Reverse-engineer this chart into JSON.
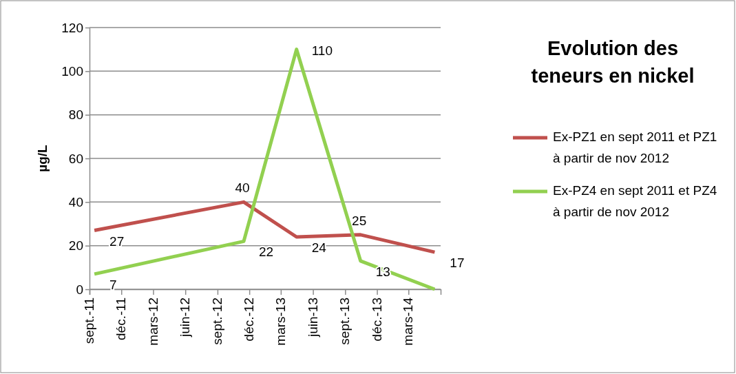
{
  "chart_data": {
    "type": "line",
    "title": "Evolution des teneurs en nickel",
    "ylabel": "µg/L",
    "x": [
      "2011-09-15",
      "2012-11-15",
      "2013-04-15",
      "2013-10-15",
      "2014-05-15"
    ],
    "series": [
      {
        "name": "Ex-PZ1 en sept 2011 et PZ1 à partir de nov 2012",
        "color": "#c0504d",
        "values": [
          27,
          40,
          24,
          25,
          17
        ],
        "value_labels": [
          "27",
          "40",
          "24",
          "25",
          "17"
        ]
      },
      {
        "name": "Ex-PZ4 en sept 2011 et PZ4 à partir de nov 2012",
        "color": "#92d050",
        "values": [
          7,
          22,
          110,
          13,
          0
        ],
        "value_labels": [
          "7",
          "22",
          "110",
          "13",
          null
        ]
      }
    ],
    "xlim": [
      "2011-09-01",
      "2014-06-01"
    ],
    "xticks": [
      {
        "value": "2011-09-01",
        "label": "sept.-11"
      },
      {
        "value": "2011-12-01",
        "label": "déc.-11"
      },
      {
        "value": "2012-03-01",
        "label": "mars-12"
      },
      {
        "value": "2012-06-01",
        "label": "juin-12"
      },
      {
        "value": "2012-09-01",
        "label": "sept.-12"
      },
      {
        "value": "2012-12-01",
        "label": "déc.-12"
      },
      {
        "value": "2013-03-01",
        "label": "mars-13"
      },
      {
        "value": "2013-06-01",
        "label": "juin-13"
      },
      {
        "value": "2013-09-01",
        "label": "sept.-13"
      },
      {
        "value": "2013-12-01",
        "label": "déc.-13"
      },
      {
        "value": "2014-03-01",
        "label": "mars-14"
      }
    ],
    "ylim": [
      0,
      120
    ],
    "yticks": [
      0,
      20,
      40,
      60,
      80,
      100,
      120
    ],
    "grid": "y",
    "legend": "right",
    "marker": "none",
    "line_style": "solid"
  }
}
